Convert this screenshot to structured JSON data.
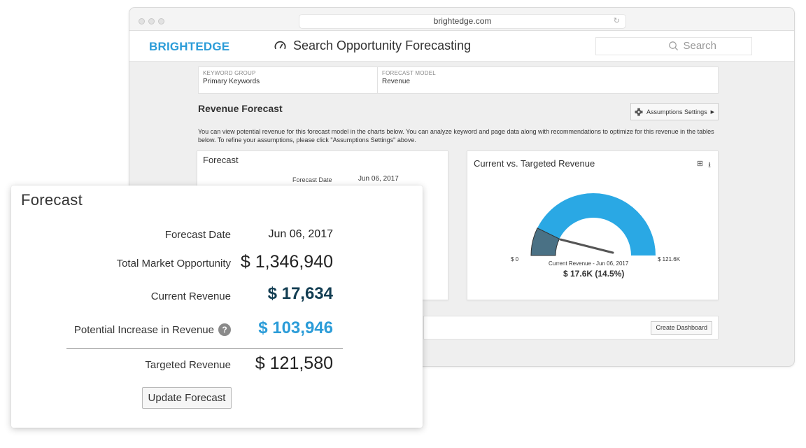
{
  "browser": {
    "url": "brightedge.com"
  },
  "app": {
    "logo": "BRIGHTEDGE",
    "title": "Search Opportunity Forecasting",
    "search_placeholder": "Search"
  },
  "selectors": {
    "keyword_group_label": "KEYWORD GROUP",
    "keyword_group_value": "Primary Keywords",
    "forecast_model_label": "FORECAST MODEL",
    "forecast_model_value": "Revenue"
  },
  "revenue_forecast": {
    "title": "Revenue Forecast",
    "assumptions_button": "Assumptions Settings",
    "description": "You can view potential revenue for this forecast model in the charts below. You can analyze keyword and page data along with recommendations to optimize for this revenue in the tables below. To refine your assumptions, please click \"Assumptions Settings\" above."
  },
  "forecast_small": {
    "title": "Forecast",
    "date_label": "Forecast Date",
    "date_value": "Jun 06, 2017"
  },
  "current_vs_targeted": {
    "title": "Current vs. Targeted Revenue",
    "min_label": "$ 0",
    "max_label": "$ 121.6K",
    "current_label": "Current Revenue - Jun 06, 2017",
    "current_value": "$ 17.6K (14.5%)",
    "current_fraction": 0.145,
    "colors": {
      "target": "#2aa8e4",
      "current": "#4a7185",
      "needle": "#555555"
    }
  },
  "dashboard_strip": {
    "create_button": "Create Dashboard"
  },
  "forecast_overlay": {
    "title": "Forecast",
    "date_label": "Forecast Date",
    "date_value": "Jun 06, 2017",
    "total_label": "Total Market Opportunity",
    "total_value": "$ 1,346,940",
    "current_label": "Current Revenue",
    "current_value": "$ 17,634",
    "potential_label": "Potential Increase in Revenue",
    "potential_value": "$ 103,946",
    "help_glyph": "?",
    "target_label": "Targeted Revenue",
    "target_value": "$ 121,580",
    "update_button": "Update Forecast"
  }
}
